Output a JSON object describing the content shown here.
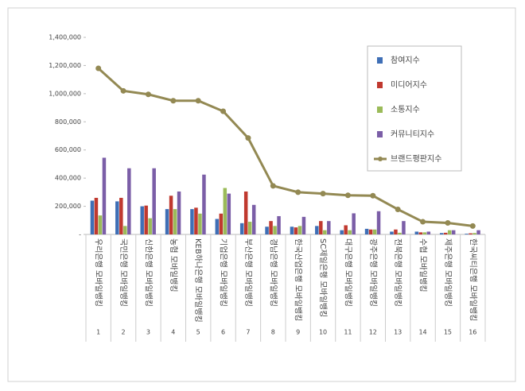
{
  "chart_data": {
    "type": "bar",
    "categories": [
      "우리은행 모바일뱅킹",
      "국민은행 모바일뱅킹",
      "신한은행 모바일뱅킹",
      "농협 모바일뱅킹",
      "KEB하나은행 모바일뱅킹",
      "기업은행 모바일뱅킹",
      "부산은행 모바일뱅킹",
      "경남은행 모바일뱅킹",
      "한국산업은행 모바일뱅킹",
      "SC제일은행 모바일뱅킹",
      "대구은행 모바일뱅킹",
      "광주은행 모바일뱅킹",
      "전북은행 모바일뱅킹",
      "수협 모바일뱅킹",
      "제주은행 모바일뱅킹",
      "한국씨티은행 모바일뱅킹"
    ],
    "ranks": [
      1,
      2,
      3,
      4,
      5,
      6,
      7,
      8,
      9,
      10,
      11,
      12,
      13,
      14,
      15,
      16
    ],
    "series": [
      {
        "name": "참여지수",
        "color": "#3f6fb6",
        "values": [
          240000,
          235000,
          200000,
          180000,
          180000,
          110000,
          80000,
          55000,
          55000,
          60000,
          30000,
          40000,
          20000,
          20000,
          10000,
          5000
        ]
      },
      {
        "name": "미디어지수",
        "color": "#c0392f",
        "values": [
          260000,
          260000,
          205000,
          275000,
          190000,
          148000,
          305000,
          95000,
          50000,
          95000,
          65000,
          35000,
          35000,
          15000,
          12000,
          8000
        ]
      },
      {
        "name": "소통지수",
        "color": "#9bbb59",
        "values": [
          135000,
          60000,
          115000,
          180000,
          148000,
          330000,
          90000,
          60000,
          60000,
          30000,
          30000,
          35000,
          12000,
          15000,
          30000,
          10000
        ]
      },
      {
        "name": "커뮤니티지수",
        "color": "#7b5ea7",
        "values": [
          545000,
          470000,
          470000,
          305000,
          425000,
          290000,
          210000,
          130000,
          125000,
          95000,
          150000,
          165000,
          95000,
          20000,
          30000,
          30000
        ]
      },
      {
        "name": "브랜드평판지수",
        "color": "#938953",
        "type": "line",
        "values": [
          1180000,
          1020000,
          995000,
          950000,
          950000,
          875000,
          685000,
          345000,
          300000,
          290000,
          278000,
          275000,
          178000,
          90000,
          82000,
          60000
        ]
      }
    ],
    "ylim": [
      0,
      1400000
    ],
    "yticks": [
      {
        "value": 0,
        "label": "-"
      },
      {
        "value": 200000,
        "label": "200,000"
      },
      {
        "value": 400000,
        "label": "400,000"
      },
      {
        "value": 600000,
        "label": "600,000"
      },
      {
        "value": 800000,
        "label": "800,000"
      },
      {
        "value": 1000000,
        "label": "1,000,000"
      },
      {
        "value": 1200000,
        "label": "1,200,000"
      },
      {
        "value": 1400000,
        "label": "1,400,000"
      }
    ],
    "legend": "upper right"
  }
}
